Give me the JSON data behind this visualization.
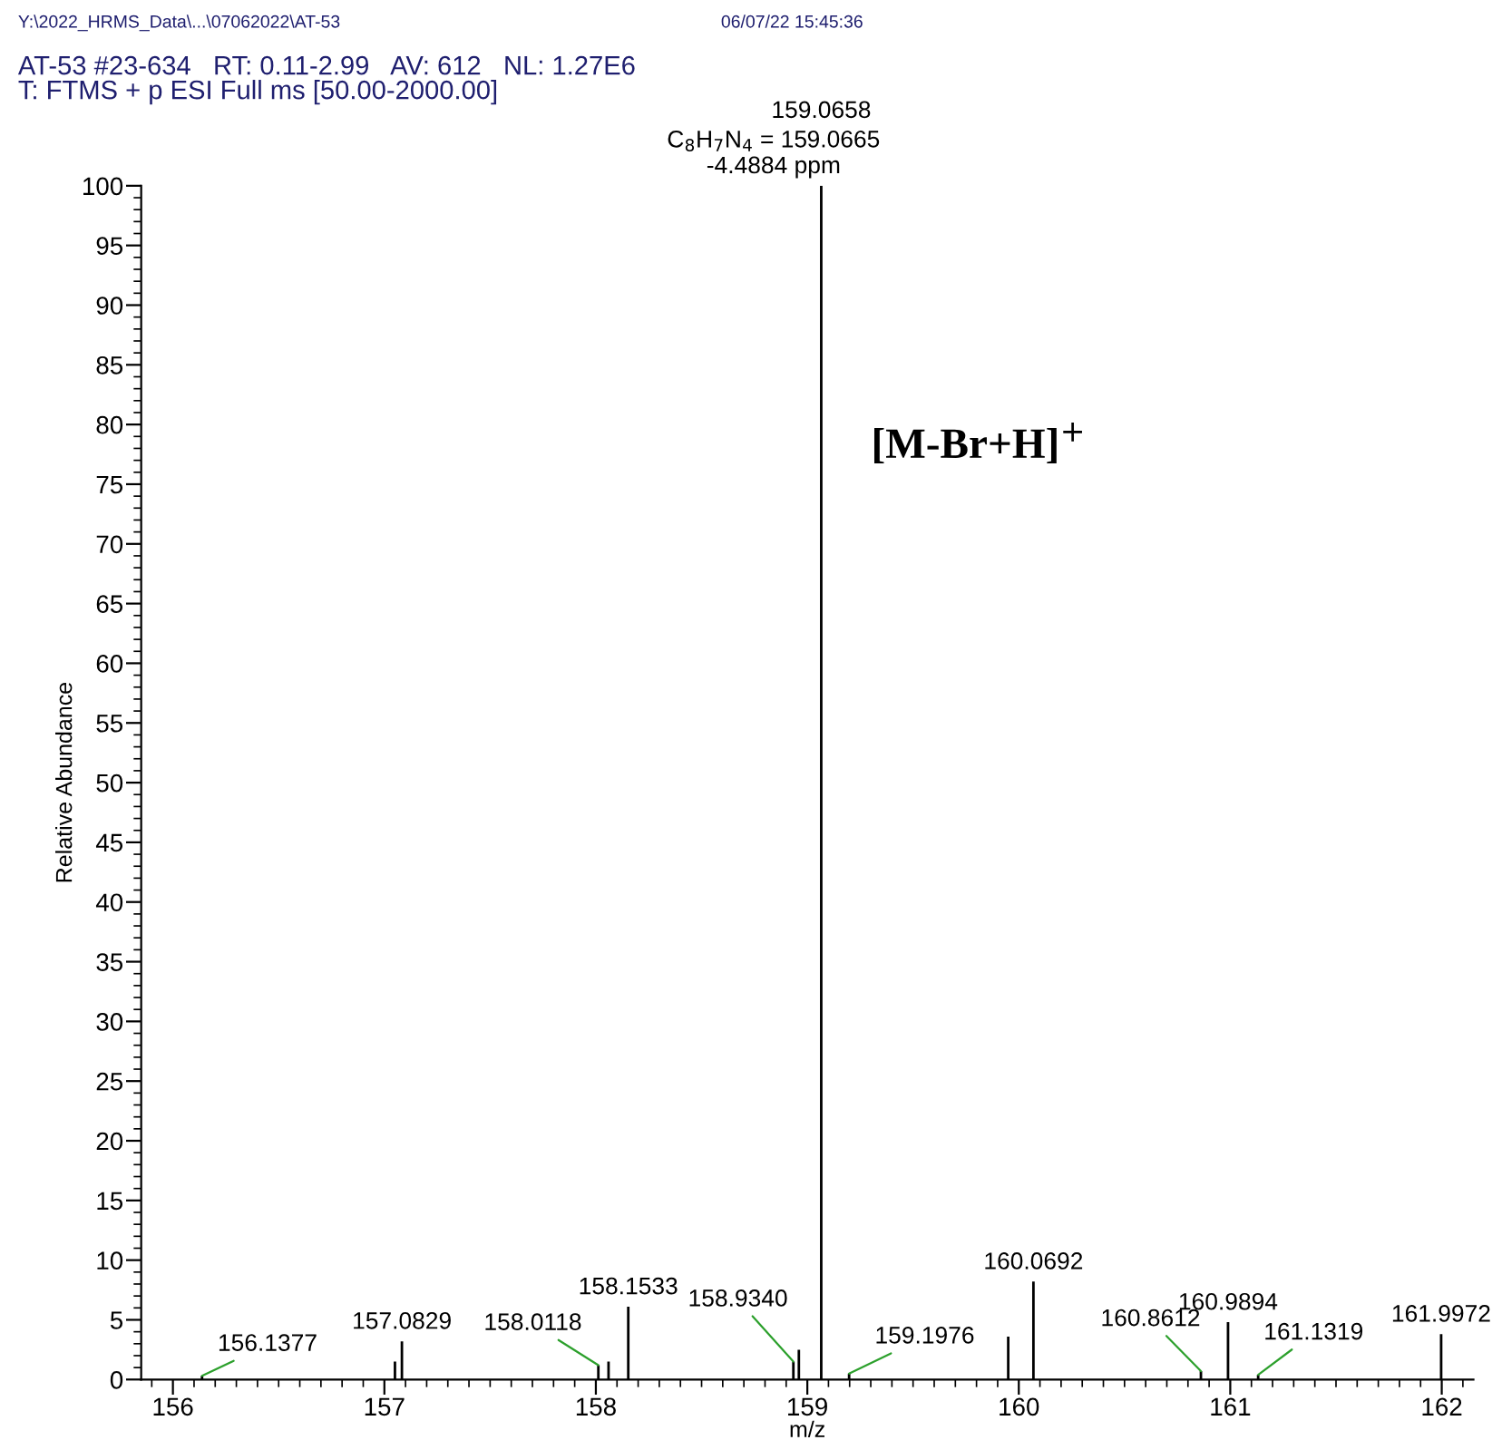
{
  "chart_data": {
    "type": "bar",
    "title": "AT-53 #23-634   RT: 0.11-2.99   AV: 612   NL: 1.27E6",
    "subtitle": "T: FTMS + p ESI Full ms [50.00-2000.00]",
    "xlabel": "m/z",
    "ylabel": "Relative Abundance",
    "x": [
      156.1377,
      157.05,
      157.0829,
      158.0118,
      158.06,
      158.1533,
      158.934,
      158.96,
      159.0658,
      159.1976,
      159.95,
      160.0692,
      160.8612,
      160.9894,
      161.1319,
      161.9972
    ],
    "values": [
      0.3,
      1.5,
      3.2,
      1.2,
      1.5,
      6.1,
      1.5,
      2.5,
      100,
      0.5,
      3.6,
      8.2,
      0.7,
      4.8,
      0.4,
      3.8
    ],
    "color": "#000000",
    "xlim": [
      155.85,
      162.15
    ],
    "ylim": [
      0,
      100
    ],
    "xticks": [
      156,
      157,
      158,
      159,
      160,
      161,
      162
    ],
    "yticks": [
      0,
      5,
      10,
      15,
      20,
      25,
      30,
      35,
      40,
      45,
      50,
      55,
      60,
      65,
      70,
      75,
      80,
      85,
      90,
      95,
      100
    ],
    "annotations": [
      "Y:\\2022_HRMS_Data\\...\\07062022\\AT-53",
      "06/07/22 15:45:36",
      "C$_{8}$H$_{7}$N$_{4}$ = 159.0665",
      "-4.4884 ppm",
      "[M-Br+H]$^{+}$",
      {
        "text": "156.1377",
        "x": 156.1377,
        "y": 0.3
      },
      {
        "text": "157.0829",
        "x": 157.0829,
        "y": 3.2
      },
      {
        "text": "158.0118",
        "x": 158.0118,
        "y": 1.2
      },
      {
        "text": "158.1533",
        "x": 158.1533,
        "y": 6.1
      },
      {
        "text": "158.9340",
        "x": 158.934,
        "y": 1.5
      },
      {
        "text": "159.0658",
        "x": 159.0658,
        "y": 100
      },
      {
        "text": "159.1976",
        "x": 159.1976,
        "y": 0.5
      },
      {
        "text": "160.0692",
        "x": 160.0692,
        "y": 8.2
      },
      {
        "text": "160.8612",
        "x": 160.8612,
        "y": 0.7
      },
      {
        "text": "160.9894",
        "x": 160.9894,
        "y": 4.8
      },
      {
        "text": "161.1319",
        "x": 161.1319,
        "y": 0.4
      },
      {
        "text": "161.9972",
        "x": 161.9972,
        "y": 3.8
      }
    ],
    "grid": false
  }
}
